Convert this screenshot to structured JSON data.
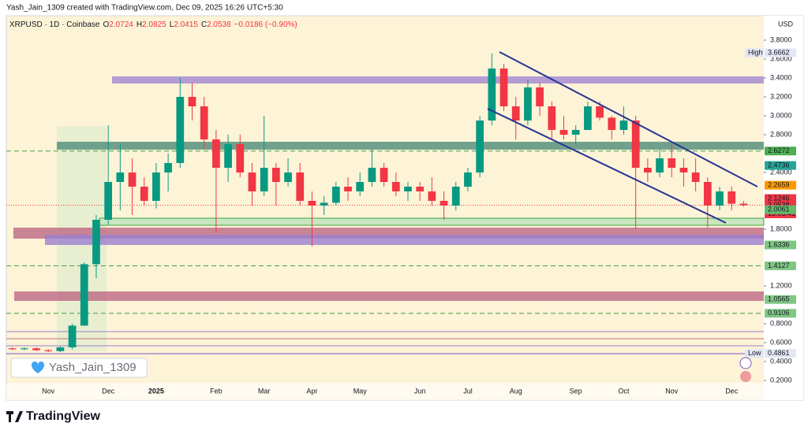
{
  "header": {
    "author_line": "Yash_Jain_1309 created with TradingView.com, Dec 09, 2025 16:26 UTC+5:30",
    "symbol": "XRPUSD · 1D · Coinbase",
    "ohlc": [
      {
        "label": "O",
        "value": 2.0724
      },
      {
        "label": "H",
        "value": 2.0825
      },
      {
        "label": "L",
        "value": 2.0415
      },
      {
        "label": "C",
        "value": 2.0538
      }
    ],
    "change": "−0.0186 (−0.90%)"
  },
  "watermark": "Yash_Jain_1309",
  "logo": "TradingView",
  "chart_data": {
    "type": "candlestick",
    "currency": "USD",
    "up_color": "#089981",
    "down_color": "#f23645",
    "categories": [
      null,
      null,
      null,
      "Nov",
      null,
      null,
      null,
      null,
      "Dec",
      null,
      null,
      null,
      "2025",
      null,
      null,
      null,
      null,
      "Feb",
      null,
      null,
      null,
      "Mar",
      null,
      null,
      null,
      "Apr",
      null,
      null,
      null,
      "May",
      null,
      null,
      null,
      null,
      "Jun",
      null,
      null,
      null,
      "Jul",
      null,
      null,
      null,
      "Aug",
      null,
      null,
      null,
      null,
      "Sep",
      null,
      null,
      null,
      "Oct",
      null,
      null,
      null,
      "Nov",
      null,
      null,
      null,
      null,
      "Dec",
      null
    ],
    "open": [
      0.54,
      0.53,
      0.54,
      0.52,
      0.51,
      0.55,
      0.78,
      1.43,
      1.9,
      2.3,
      2.4,
      2.25,
      2.1,
      2.4,
      2.5,
      3.2,
      3.1,
      2.75,
      2.45,
      2.7,
      2.4,
      2.2,
      2.45,
      2.3,
      2.4,
      2.1,
      2.05,
      2.08,
      2.25,
      2.2,
      2.3,
      2.45,
      2.3,
      2.2,
      2.25,
      2.2,
      2.1,
      2.05,
      2.25,
      2.4,
      2.95,
      3.5,
      3.1,
      2.95,
      3.3,
      3.1,
      2.85,
      2.8,
      2.85,
      3.1,
      2.98,
      2.85,
      2.95,
      2.45,
      2.4,
      2.55,
      2.45,
      2.4,
      2.3,
      2.05,
      2.2,
      2.07
    ],
    "high": [
      0.55,
      0.55,
      0.55,
      0.53,
      0.56,
      0.8,
      1.45,
      1.95,
      2.9,
      2.7,
      2.55,
      2.35,
      2.5,
      2.6,
      3.4,
      3.35,
      3.2,
      2.85,
      2.8,
      2.8,
      2.5,
      3.0,
      2.5,
      2.55,
      2.5,
      2.2,
      2.15,
      2.3,
      2.35,
      2.4,
      2.65,
      2.5,
      2.4,
      2.3,
      2.3,
      2.35,
      2.2,
      2.3,
      2.45,
      3.0,
      3.66,
      3.55,
      3.2,
      3.38,
      3.35,
      3.15,
      3.0,
      2.9,
      3.15,
      3.15,
      3.0,
      3.1,
      3.0,
      2.55,
      2.65,
      2.7,
      2.55,
      2.55,
      2.35,
      2.25,
      2.25,
      2.1
    ],
    "low": [
      0.52,
      0.52,
      0.51,
      0.5,
      0.5,
      0.53,
      0.78,
      1.28,
      1.85,
      2.0,
      1.95,
      2.05,
      2.02,
      2.2,
      2.45,
      2.95,
      2.65,
      1.77,
      2.3,
      2.35,
      2.05,
      2.15,
      2.05,
      2.25,
      2.05,
      1.62,
      1.95,
      2.05,
      2.1,
      2.15,
      2.25,
      2.25,
      2.15,
      2.1,
      2.1,
      2.05,
      1.9,
      2.0,
      2.2,
      2.35,
      2.9,
      3.05,
      2.75,
      2.9,
      3.0,
      2.75,
      2.75,
      2.7,
      2.85,
      2.95,
      2.75,
      2.8,
      1.8,
      2.3,
      2.35,
      2.35,
      2.25,
      2.2,
      1.82,
      2.0,
      2.0,
      2.04
    ],
    "close": [
      0.53,
      0.54,
      0.52,
      0.51,
      0.55,
      0.78,
      1.43,
      1.9,
      2.3,
      2.4,
      2.25,
      2.1,
      2.4,
      2.5,
      3.2,
      3.1,
      2.75,
      2.45,
      2.7,
      2.4,
      2.2,
      2.45,
      2.3,
      2.4,
      2.1,
      2.05,
      2.08,
      2.25,
      2.2,
      2.3,
      2.45,
      2.3,
      2.2,
      2.25,
      2.2,
      2.1,
      2.05,
      2.25,
      2.4,
      2.95,
      3.5,
      3.1,
      2.95,
      3.3,
      3.1,
      2.85,
      2.8,
      2.85,
      3.1,
      2.98,
      2.85,
      2.95,
      2.45,
      2.4,
      2.55,
      2.45,
      2.4,
      2.3,
      2.05,
      2.2,
      2.07,
      2.0538
    ],
    "ylim": [
      0,
      3.9
    ],
    "yticks": [
      {
        "value": 0.2,
        "label": "0.2000"
      },
      {
        "value": 0.4,
        "label": "0.4000"
      },
      {
        "value": 0.6,
        "label": "0.6000"
      },
      {
        "value": 0.8,
        "label": "0.8000"
      },
      {
        "value": 1.2,
        "label": "1.2000"
      },
      {
        "value": 1.8,
        "label": "1.8000"
      },
      {
        "value": 2.4,
        "label": "2.4000"
      },
      {
        "value": 2.8,
        "label": "2.8000"
      },
      {
        "value": 3.0,
        "label": "3.0000"
      },
      {
        "value": 3.2,
        "label": "3.2000"
      },
      {
        "value": 3.4,
        "label": "3.4000"
      },
      {
        "value": 3.6,
        "label": "3.6000"
      },
      {
        "value": 3.8,
        "label": "3.8000"
      }
    ],
    "price_labels": [
      {
        "value": 3.6662,
        "tag": "High",
        "color": "#e3e6f3",
        "text_color": "#131722"
      },
      {
        "value": 2.6272,
        "color": "#4caf50",
        "text_color": "#131722",
        "dashed": true
      },
      {
        "value": 2.4736,
        "color": "#26a69a",
        "text_color": "#ffffff"
      },
      {
        "value": 2.2659,
        "color": "#ff9800",
        "text_color": "#131722"
      },
      {
        "value": 2.1246,
        "color": "#f23645",
        "text_color": "#ffffff"
      },
      {
        "value": 2.0538,
        "countdown": "13:03:41",
        "color": "#f23645",
        "text_color": "#ffffff",
        "dotted": true
      },
      {
        "value": 2.0061,
        "color": "#66bb6a",
        "text_color": "#131722"
      },
      {
        "value": 1.6336,
        "color": "#81c784",
        "text_color": "#131722"
      },
      {
        "value": 1.4127,
        "color": "#81c784",
        "text_color": "#131722",
        "dashed": true
      },
      {
        "value": 1.0565,
        "color": "#81c784",
        "text_color": "#131722"
      },
      {
        "value": 0.9106,
        "color": "#81c784",
        "text_color": "#131722",
        "dashed": true
      },
      {
        "value": 0.4861,
        "tag": "Low",
        "color": "#e3e6f3",
        "text_color": "#131722"
      }
    ]
  }
}
